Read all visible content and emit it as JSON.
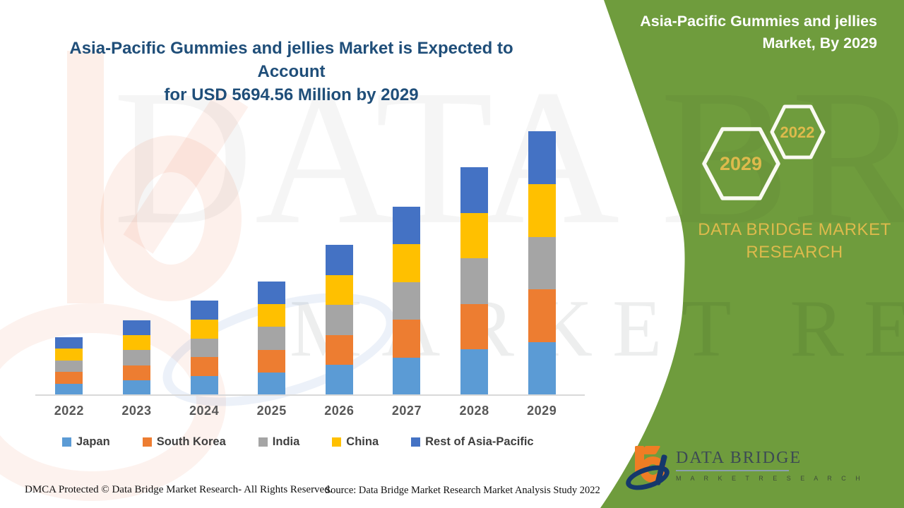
{
  "main_title": {
    "line1": "Asia-Pacific Gummies and jellies Market is Expected to Account",
    "line2": "for USD 5694.56 Million by 2029",
    "color": "#1f4e79"
  },
  "side_panel": {
    "bg_color": "#6f9c3d",
    "title_line1": "Asia-Pacific Gummies and jellies",
    "title_line2": "Market, By 2029",
    "hexagon_large_year": "2029",
    "hexagon_small_year": "2022",
    "hexagon_outline_color": "#fafaf2",
    "brand_line1": "DATA BRIDGE MARKET",
    "brand_line2": "RESEARCH",
    "accent_gold": "#ddba4c"
  },
  "chart_data": {
    "type": "bar",
    "stacked": true,
    "unit": "USD Million",
    "values_estimated": true,
    "title": "Asia-Pacific Gummies and jellies Market is Expected to Account for USD 5694.56 Million by 2029",
    "xlabel": "",
    "ylabel": "",
    "axis_visible": false,
    "legend_position": "bottom",
    "categories": [
      "2022",
      "2023",
      "2024",
      "2025",
      "2026",
      "2027",
      "2028",
      "2029"
    ],
    "series": [
      {
        "name": "Japan",
        "color": "#5B9BD5",
        "values": [
          250,
          323,
          408,
          490,
          649,
          813,
          984,
          1138.91
        ]
      },
      {
        "name": "South Korea",
        "color": "#ED7D31",
        "values": [
          250,
          323,
          408,
          490,
          649,
          813,
          984,
          1138.91
        ]
      },
      {
        "name": "India",
        "color": "#A5A5A5",
        "values": [
          250,
          323,
          408,
          490,
          649,
          813,
          984,
          1138.91
        ]
      },
      {
        "name": "China",
        "color": "#FFC000",
        "values": [
          250,
          323,
          408,
          490,
          649,
          813,
          984,
          1138.91
        ]
      },
      {
        "name": "Rest of Asia-Pacific",
        "color": "#4472C4",
        "values": [
          250,
          323,
          408,
          490,
          649,
          813,
          984,
          1138.91
        ]
      }
    ],
    "totals": [
      1250,
      1615,
      2040,
      2450,
      3245,
      4065,
      4920,
      5694.56
    ]
  },
  "watermark": {
    "line1": "DATA BRIDGE",
    "line2": "MARKET RESEARCH"
  },
  "footer": {
    "left": "DMCA Protected © Data Bridge Market Research- All Rights Reserved.",
    "source": "Source: Data Bridge Market Research Market Analysis Study 2022"
  },
  "logo": {
    "name": "DATA BRIDGE",
    "sub": "M A R K E T   R E S E A R C H"
  }
}
